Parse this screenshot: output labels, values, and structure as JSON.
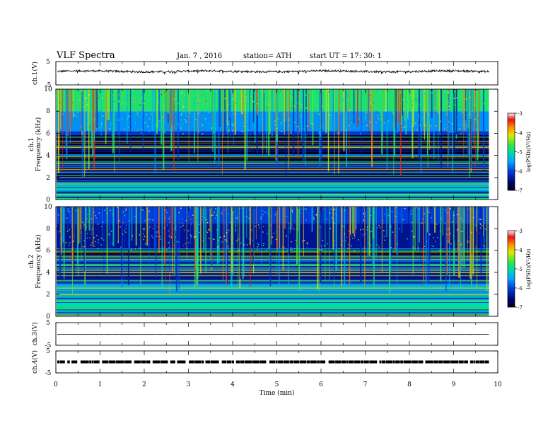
{
  "header": {
    "title": "VLF  Spectra",
    "date": "Jan.  7  , 2016",
    "station": "station= ATH",
    "start": "start  UT  =    17: 30: 1"
  },
  "chart_data": [
    {
      "type": "line",
      "panel": "ch1-waveform",
      "ylabel": "ch.1(V)",
      "ylim": [
        -5,
        5
      ],
      "yticks": [
        "5",
        "-5"
      ],
      "level": 0.8,
      "color": "#000000"
    },
    {
      "type": "heatmap",
      "panel": "ch1-spectrogram",
      "ylabel": [
        "ch.1",
        "Frequency  (kHz)"
      ],
      "ylim": [
        0,
        10
      ],
      "yticks": [
        "0",
        "2",
        "4",
        "6",
        "8",
        "10"
      ],
      "bands_khz": [
        {
          "from": 0,
          "to": 1.5,
          "level": -5.2
        },
        {
          "from": 1.5,
          "to": 3.2,
          "level": -6.6
        },
        {
          "from": 3.2,
          "to": 5.8,
          "level": -6.9
        },
        {
          "from": 5.8,
          "to": 6.2,
          "level": -6.0
        },
        {
          "from": 6.2,
          "to": 8.0,
          "level": -5.6
        },
        {
          "from": 8.0,
          "to": 10.0,
          "level": -4.8
        }
      ],
      "colorbar": {
        "label": "log(PSD)(V²/Hz)",
        "ticks": [
          "-3",
          "-4",
          "-5",
          "-6",
          "-7"
        ],
        "range": [
          -7,
          -3
        ]
      }
    },
    {
      "type": "heatmap",
      "panel": "ch2-spectrogram",
      "ylabel": [
        "ch.2",
        "Frequency  (kHz)"
      ],
      "ylim": [
        0,
        10
      ],
      "yticks": [
        "0",
        "2",
        "4",
        "6",
        "8",
        "10"
      ],
      "bands_khz": [
        {
          "from": 0,
          "to": 1.5,
          "level": -5.0
        },
        {
          "from": 1.5,
          "to": 3.0,
          "level": -5.6
        },
        {
          "from": 3.0,
          "to": 5.5,
          "level": -6.3
        },
        {
          "from": 5.5,
          "to": 6.0,
          "level": -6.9
        },
        {
          "from": 6.0,
          "to": 8.5,
          "level": -6.4
        },
        {
          "from": 8.5,
          "to": 10.0,
          "level": -6.0
        }
      ],
      "colorbar": {
        "label": "log(PSD)(V²/Hz)",
        "ticks": [
          "-3",
          "-4",
          "-5",
          "-6",
          "-7"
        ],
        "range": [
          -7,
          -3
        ]
      }
    },
    {
      "type": "line",
      "panel": "ch3-waveform",
      "ylabel": "ch.3(V)",
      "ylim": [
        -5,
        5
      ],
      "yticks": [
        "5",
        "-5"
      ],
      "level": -0.2,
      "color": "#000000"
    },
    {
      "type": "line",
      "panel": "ch4-waveform",
      "ylabel": "ch.4(V)",
      "ylim": [
        -5,
        5
      ],
      "yticks": [
        "5",
        "-5"
      ],
      "level": 0,
      "color": "#000000"
    }
  ],
  "x_axis": {
    "label": "Time  (min)",
    "range": [
      0,
      10
    ],
    "ticks": [
      "0",
      "1",
      "2",
      "3",
      "4",
      "5",
      "6",
      "7",
      "8",
      "9",
      "10"
    ],
    "data_end": 9.8
  }
}
